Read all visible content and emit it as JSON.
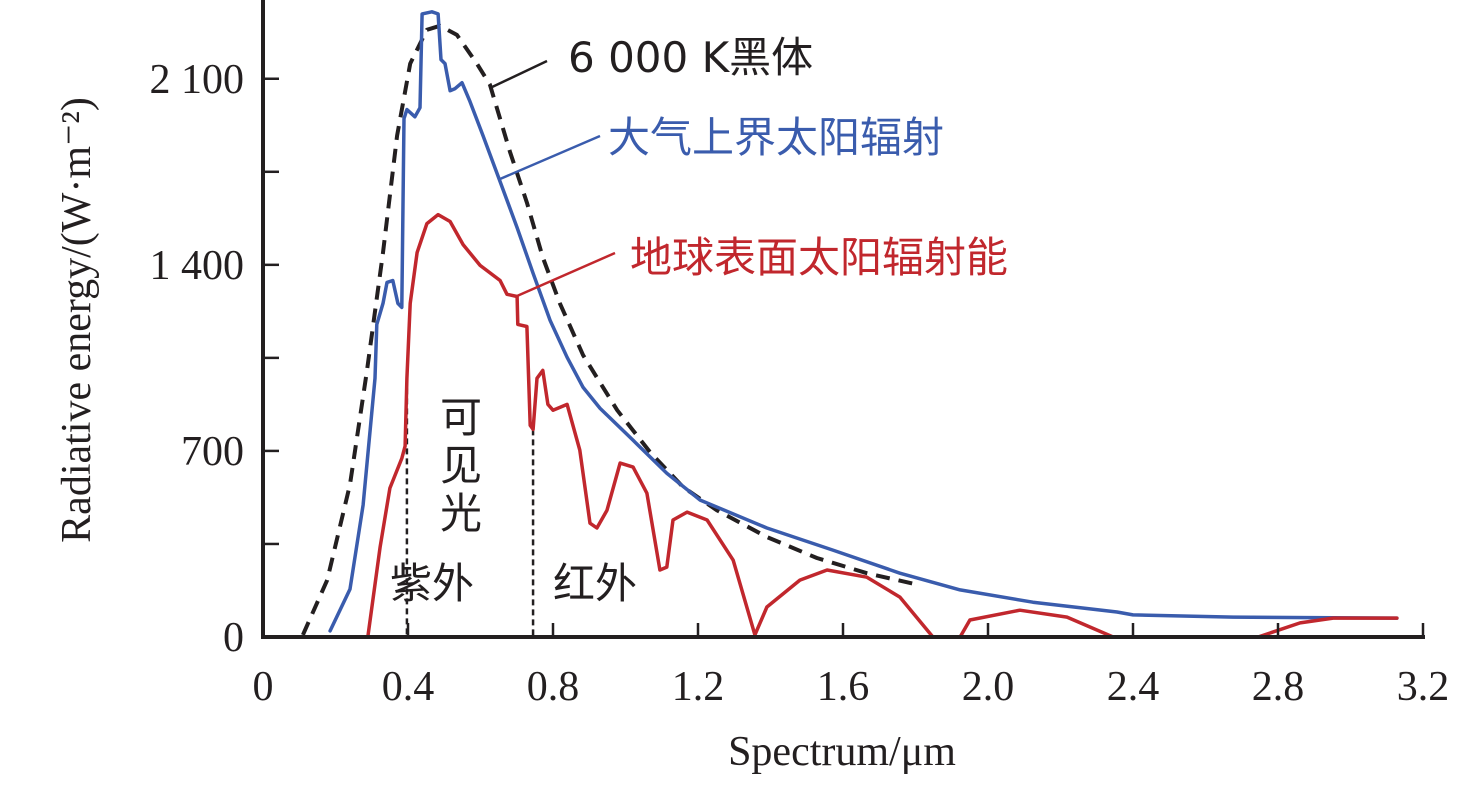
{
  "chart_data": {
    "type": "line",
    "title": "",
    "xlabel": "Spectrum/μm",
    "ylabel": "Radiative energy/(W·m⁻²)",
    "xlim": [
      0,
      3.2
    ],
    "ylim": [
      0,
      2400
    ],
    "x_ticks": [
      0,
      0.4,
      0.8,
      1.2,
      1.6,
      2.0,
      2.4,
      2.8,
      3.2
    ],
    "x_tick_labels": [
      "0",
      "0.4",
      "0.8",
      "1.2",
      "1.6",
      "2.0",
      "2.4",
      "2.8",
      "3.2"
    ],
    "y_ticks": [
      0,
      350,
      700,
      1050,
      1400,
      1750,
      2100
    ],
    "y_tick_labels": [
      "0",
      "",
      "700",
      "",
      "1 400",
      "",
      "2 100"
    ],
    "grid": false,
    "legend": "none (direct labels)",
    "series": [
      {
        "name": "6 000 K黑体",
        "color": "#231f20",
        "style": "dashed",
        "points": [
          [
            0.11,
            8
          ],
          [
            0.177,
            214
          ],
          [
            0.24,
            574
          ],
          [
            0.287,
            1003
          ],
          [
            0.331,
            1446
          ],
          [
            0.37,
            1886
          ],
          [
            0.406,
            2157
          ],
          [
            0.452,
            2284
          ],
          [
            0.488,
            2299
          ],
          [
            0.535,
            2265
          ],
          [
            0.59,
            2157
          ],
          [
            0.626,
            2078
          ],
          [
            0.681,
            1826
          ],
          [
            0.728,
            1634
          ],
          [
            0.772,
            1428
          ],
          [
            0.819,
            1255
          ],
          [
            0.883,
            1060
          ],
          [
            0.977,
            853
          ],
          [
            1.068,
            695
          ],
          [
            1.159,
            564
          ],
          [
            1.252,
            477
          ],
          [
            1.39,
            376
          ],
          [
            1.528,
            297
          ],
          [
            1.666,
            240
          ],
          [
            1.812,
            195
          ]
        ]
      },
      {
        "name": "大气上界太阳辐射",
        "color": "#3a5cad",
        "style": "solid",
        "points": [
          [
            0.185,
            23
          ],
          [
            0.24,
            180
          ],
          [
            0.276,
            496
          ],
          [
            0.309,
            973
          ],
          [
            0.314,
            1176
          ],
          [
            0.331,
            1255
          ],
          [
            0.342,
            1334
          ],
          [
            0.358,
            1341
          ],
          [
            0.372,
            1255
          ],
          [
            0.383,
            1240
          ],
          [
            0.389,
            1950
          ],
          [
            0.397,
            1984
          ],
          [
            0.419,
            1957
          ],
          [
            0.433,
            1991
          ],
          [
            0.439,
            2344
          ],
          [
            0.466,
            2352
          ],
          [
            0.483,
            2344
          ],
          [
            0.491,
            2172
          ],
          [
            0.502,
            2157
          ],
          [
            0.516,
            2055
          ],
          [
            0.53,
            2063
          ],
          [
            0.549,
            2085
          ],
          [
            0.571,
            2014
          ],
          [
            0.607,
            1886
          ],
          [
            0.654,
            1713
          ],
          [
            0.701,
            1540
          ],
          [
            0.745,
            1368
          ],
          [
            0.792,
            1191
          ],
          [
            0.839,
            1052
          ],
          [
            0.883,
            939
          ],
          [
            0.93,
            860
          ],
          [
            1.021,
            740
          ],
          [
            1.114,
            616
          ],
          [
            1.206,
            515
          ],
          [
            1.39,
            410
          ],
          [
            1.572,
            327
          ],
          [
            1.757,
            240
          ],
          [
            1.923,
            177
          ],
          [
            2.124,
            131
          ],
          [
            2.356,
            94
          ],
          [
            2.4,
            83
          ],
          [
            2.676,
            75
          ],
          [
            3.128,
            71
          ]
        ]
      },
      {
        "name": "地球表面太阳辐射能",
        "color": "#c1272d",
        "style": "solid",
        "points": [
          [
            0.29,
            8
          ],
          [
            0.323,
            338
          ],
          [
            0.35,
            560
          ],
          [
            0.383,
            672
          ],
          [
            0.392,
            718
          ],
          [
            0.397,
            973
          ],
          [
            0.406,
            1255
          ],
          [
            0.425,
            1446
          ],
          [
            0.452,
            1555
          ],
          [
            0.483,
            1589
          ],
          [
            0.516,
            1563
          ],
          [
            0.552,
            1476
          ],
          [
            0.599,
            1398
          ],
          [
            0.654,
            1341
          ],
          [
            0.673,
            1289
          ],
          [
            0.701,
            1281
          ],
          [
            0.703,
            1176
          ],
          [
            0.728,
            1168
          ],
          [
            0.737,
            796
          ],
          [
            0.745,
            781
          ],
          [
            0.756,
            973
          ],
          [
            0.772,
            1003
          ],
          [
            0.786,
            875
          ],
          [
            0.8,
            853
          ],
          [
            0.839,
            875
          ],
          [
            0.874,
            703
          ],
          [
            0.902,
            428
          ],
          [
            0.921,
            410
          ],
          [
            0.949,
            477
          ],
          [
            0.985,
            654
          ],
          [
            1.021,
            639
          ],
          [
            1.059,
            541
          ],
          [
            1.095,
            252
          ],
          [
            1.114,
            263
          ],
          [
            1.131,
            440
          ],
          [
            1.17,
            470
          ],
          [
            1.225,
            440
          ],
          [
            1.297,
            289
          ],
          [
            1.357,
            8
          ],
          [
            1.39,
            113
          ],
          [
            1.481,
            214
          ],
          [
            1.556,
            252
          ],
          [
            1.666,
            225
          ],
          [
            1.757,
            150
          ],
          [
            1.848,
            0
          ],
          [
            1.923,
            0
          ],
          [
            1.95,
            64
          ],
          [
            2.088,
            101
          ],
          [
            2.218,
            75
          ],
          [
            2.345,
            0
          ],
          [
            2.745,
            0
          ],
          [
            2.861,
            53
          ],
          [
            2.952,
            71
          ],
          [
            3.128,
            71
          ]
        ]
      }
    ],
    "region_dividers": [
      0.397,
      0.745
    ],
    "annotations": {
      "blackbody": "6 000 K黑体",
      "toa": "大气上界太阳辐射",
      "surface": "地球表面太阳辐射能",
      "uv": "紫外",
      "visible": "可见光",
      "ir": "红外"
    }
  }
}
